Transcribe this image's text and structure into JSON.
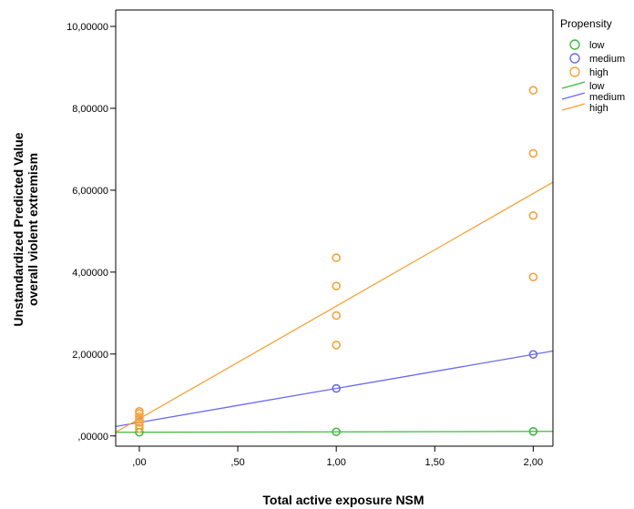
{
  "chart_data": {
    "type": "scatter",
    "xlabel": "Total active exposure NSM",
    "ylabel": [
      "Unstandardized Predicted Value",
      "overall violent extremism"
    ],
    "xlim": [
      -0.12,
      2.1
    ],
    "ylim": [
      -0.25,
      10.4
    ],
    "x_ticks": [
      {
        "value": 0,
        "label": ",00"
      },
      {
        "value": 0.5,
        "label": ",50"
      },
      {
        "value": 1.0,
        "label": "1,00"
      },
      {
        "value": 1.5,
        "label": "1,50"
      },
      {
        "value": 2.0,
        "label": "2,00"
      }
    ],
    "y_ticks": [
      {
        "value": 0,
        "label": ",00000"
      },
      {
        "value": 2,
        "label": "2,00000"
      },
      {
        "value": 4,
        "label": "4,00000"
      },
      {
        "value": 6,
        "label": "6,00000"
      },
      {
        "value": 8,
        "label": "8,00000"
      },
      {
        "value": 10,
        "label": "10,00000"
      }
    ],
    "legend": {
      "title": "Propensity",
      "position": "right",
      "markers": [
        "low",
        "medium",
        "high"
      ],
      "lines": [
        "low",
        "medium",
        "high"
      ]
    },
    "series": [
      {
        "name": "low",
        "color": "#3fb93f",
        "points": [
          [
            0,
            0.09
          ],
          [
            1,
            0.1
          ],
          [
            2,
            0.11
          ]
        ],
        "fit": {
          "intercept": 0.09,
          "slope": 0.01
        }
      },
      {
        "name": "medium",
        "color": "#6a6aee",
        "points": [
          [
            0,
            0.34
          ],
          [
            1,
            1.16
          ],
          [
            2,
            1.99
          ]
        ],
        "fit": {
          "intercept": 0.33,
          "slope": 0.83
        }
      },
      {
        "name": "high",
        "color": "#f5a23a",
        "points": [
          [
            0,
            0.18
          ],
          [
            0,
            0.26
          ],
          [
            0,
            0.33
          ],
          [
            0,
            0.4
          ],
          [
            0,
            0.47
          ],
          [
            0,
            0.55
          ],
          [
            0,
            0.6
          ],
          [
            1,
            2.22
          ],
          [
            1,
            2.94
          ],
          [
            1,
            3.66
          ],
          [
            1,
            4.35
          ],
          [
            2,
            3.88
          ],
          [
            2,
            5.38
          ],
          [
            2,
            6.9
          ],
          [
            2,
            8.44
          ]
        ],
        "fit": {
          "intercept": 0.42,
          "slope": 2.75
        }
      }
    ]
  }
}
